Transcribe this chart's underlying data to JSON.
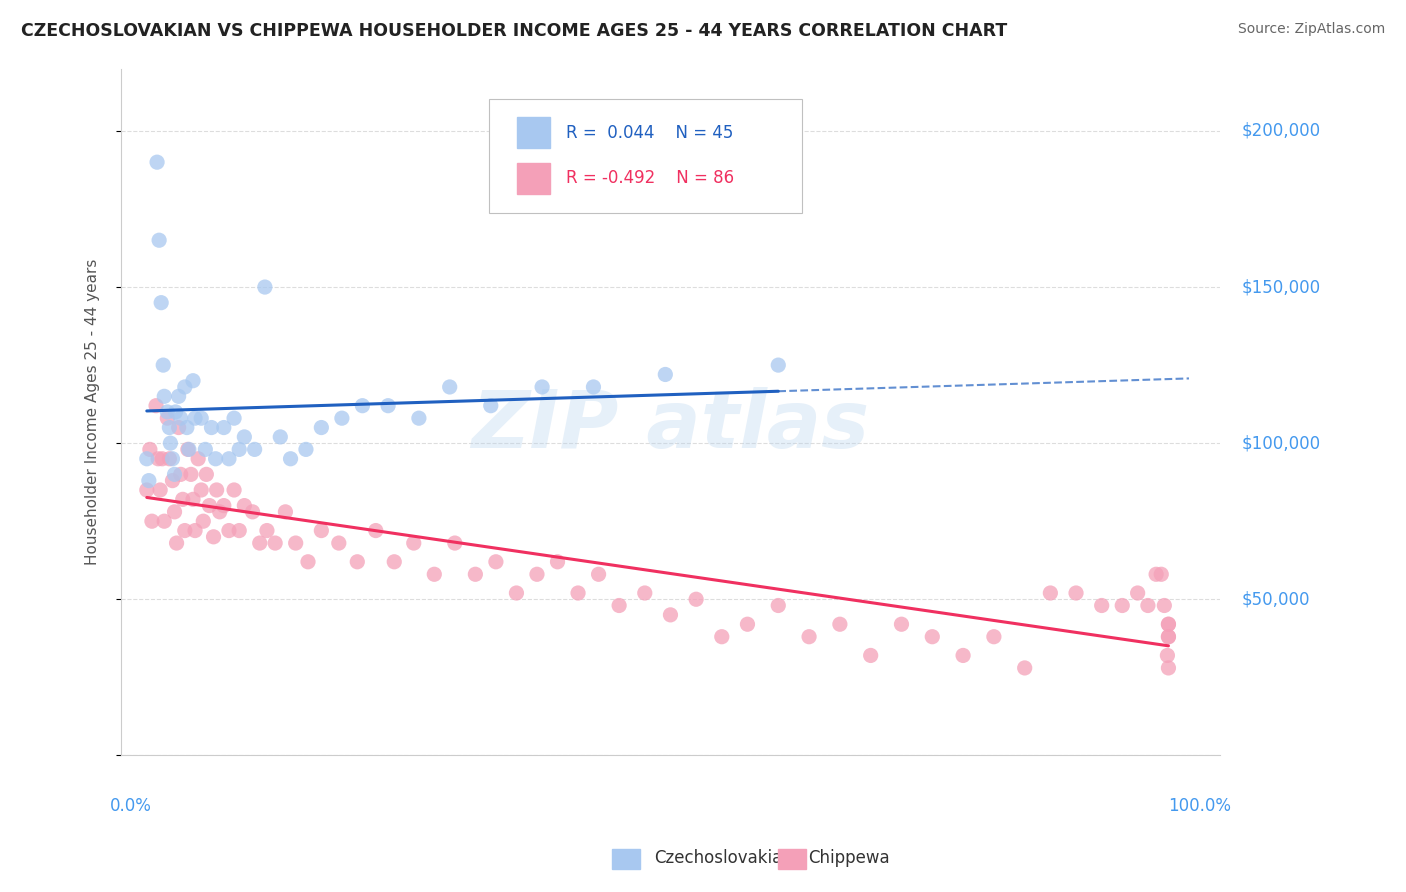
{
  "title": "CZECHOSLOVAKIAN VS CHIPPEWA HOUSEHOLDER INCOME AGES 25 - 44 YEARS CORRELATION CHART",
  "source": "Source: ZipAtlas.com",
  "ylabel": "Householder Income Ages 25 - 44 years",
  "xlim": [
    -0.02,
    1.05
  ],
  "ylim": [
    0,
    220000
  ],
  "yticks": [
    0,
    50000,
    100000,
    150000,
    200000
  ],
  "ytick_labels": [
    "",
    "$50,000",
    "$100,000",
    "$150,000",
    "$200,000"
  ],
  "color_czech": "#a8c8f0",
  "color_chippewa": "#f4a0b8",
  "color_czech_line": "#2060c0",
  "color_chippewa_line": "#f03060",
  "color_title": "#222222",
  "color_source": "#666666",
  "color_axis_label": "#555555",
  "color_yticklabels": "#4499ee",
  "color_xticklabels": "#4499ee",
  "czech_x": [
    0.005,
    0.007,
    0.015,
    0.017,
    0.019,
    0.021,
    0.022,
    0.025,
    0.027,
    0.028,
    0.03,
    0.032,
    0.033,
    0.036,
    0.038,
    0.042,
    0.044,
    0.046,
    0.05,
    0.052,
    0.058,
    0.062,
    0.068,
    0.072,
    0.08,
    0.085,
    0.09,
    0.095,
    0.1,
    0.11,
    0.12,
    0.135,
    0.145,
    0.16,
    0.175,
    0.195,
    0.215,
    0.24,
    0.27,
    0.3,
    0.34,
    0.39,
    0.44,
    0.51,
    0.62
  ],
  "czech_y": [
    95000,
    88000,
    190000,
    165000,
    145000,
    125000,
    115000,
    110000,
    105000,
    100000,
    95000,
    90000,
    110000,
    115000,
    108000,
    118000,
    105000,
    98000,
    120000,
    108000,
    108000,
    98000,
    105000,
    95000,
    105000,
    95000,
    108000,
    98000,
    102000,
    98000,
    150000,
    102000,
    95000,
    98000,
    105000,
    108000,
    112000,
    112000,
    108000,
    118000,
    112000,
    118000,
    118000,
    122000,
    125000
  ],
  "chippewa_x": [
    0.005,
    0.008,
    0.01,
    0.014,
    0.016,
    0.018,
    0.02,
    0.022,
    0.025,
    0.027,
    0.03,
    0.032,
    0.034,
    0.036,
    0.038,
    0.04,
    0.042,
    0.045,
    0.048,
    0.05,
    0.052,
    0.055,
    0.058,
    0.06,
    0.063,
    0.066,
    0.07,
    0.073,
    0.076,
    0.08,
    0.085,
    0.09,
    0.095,
    0.1,
    0.108,
    0.115,
    0.122,
    0.13,
    0.14,
    0.15,
    0.162,
    0.175,
    0.192,
    0.21,
    0.228,
    0.246,
    0.265,
    0.285,
    0.305,
    0.325,
    0.345,
    0.365,
    0.385,
    0.405,
    0.425,
    0.445,
    0.465,
    0.49,
    0.515,
    0.54,
    0.565,
    0.59,
    0.62,
    0.65,
    0.68,
    0.71,
    0.74,
    0.77,
    0.8,
    0.83,
    0.86,
    0.885,
    0.91,
    0.935,
    0.955,
    0.97,
    0.98,
    0.988,
    0.993,
    0.996,
    0.999,
    1.0,
    1.0,
    1.0,
    1.0,
    1.0
  ],
  "chippewa_y": [
    85000,
    98000,
    75000,
    112000,
    95000,
    85000,
    95000,
    75000,
    108000,
    95000,
    88000,
    78000,
    68000,
    105000,
    90000,
    82000,
    72000,
    98000,
    90000,
    82000,
    72000,
    95000,
    85000,
    75000,
    90000,
    80000,
    70000,
    85000,
    78000,
    80000,
    72000,
    85000,
    72000,
    80000,
    78000,
    68000,
    72000,
    68000,
    78000,
    68000,
    62000,
    72000,
    68000,
    62000,
    72000,
    62000,
    68000,
    58000,
    68000,
    58000,
    62000,
    52000,
    58000,
    62000,
    52000,
    58000,
    48000,
    52000,
    45000,
    50000,
    38000,
    42000,
    48000,
    38000,
    42000,
    32000,
    42000,
    38000,
    32000,
    38000,
    28000,
    52000,
    52000,
    48000,
    48000,
    52000,
    48000,
    58000,
    58000,
    48000,
    32000,
    38000,
    42000,
    28000,
    38000,
    42000
  ]
}
